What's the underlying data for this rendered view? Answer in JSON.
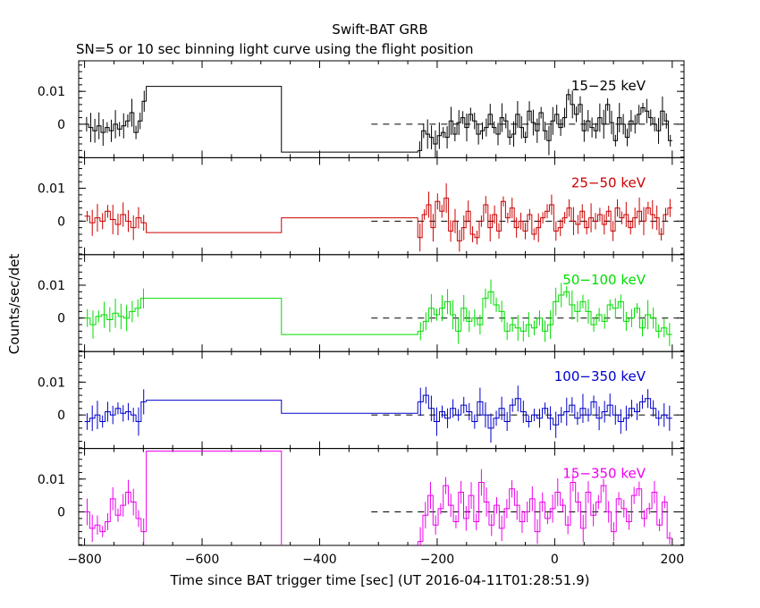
{
  "chart_data": {
    "type": "line",
    "title": "Swift-BAT GRB",
    "subtitle": "SN=5 or 10 sec binning light curve using the flight position",
    "xlabel": "Time since BAT trigger time [sec] (UT 2016-04-11T01:28:51.9)",
    "ylabel": "Counts/sec/det",
    "xlim": [
      -810,
      220
    ],
    "x_ticks": [
      -800,
      -600,
      -400,
      -200,
      0,
      200
    ],
    "y_ticks": [
      0,
      0.01
    ],
    "y_tick_labels": [
      "0",
      "0.01"
    ],
    "grid": false,
    "reference_line": 0,
    "panels": [
      {
        "name": "15−25 keV",
        "color": "#000000",
        "ylim": [
          -0.0102,
          0.0193
        ],
        "early": [
          0.0,
          -0.001,
          -0.002,
          -0.0005,
          -0.0025,
          -0.001,
          -0.002,
          0.0,
          -0.0015,
          -0.0005,
          0.001,
          0.0035,
          -0.0025,
          0.001,
          0.007
        ],
        "wide": [
          0.0115,
          -0.0085
        ],
        "late": [
          -0.008,
          -0.002,
          -0.003,
          -0.004,
          -0.006,
          -0.0035,
          -0.0025,
          -0.004,
          0.001,
          -0.003,
          0.0005,
          0.002,
          -0.001,
          0.003,
          0.001,
          -0.003,
          -0.002,
          -0.001,
          0.003,
          -0.001,
          -0.003,
          0.002,
          0.001,
          -0.004,
          -0.003,
          0.003,
          -0.001,
          -0.004,
          0.004,
          0.0005,
          -0.002,
          0.0035,
          -0.002,
          -0.005,
          0.001,
          0.003,
          -0.001,
          0.002,
          0.009,
          0.006,
          0.003,
          0.006,
          -0.002,
          0.001,
          -0.001,
          -0.002,
          0.002,
          0.0,
          0.006,
          0.0005,
          -0.005,
          0.002,
          0.0,
          -0.004,
          0.001,
          0.0,
          0.003,
          0.005,
          0.004,
          0.002,
          0.0,
          -0.002,
          0.004,
          0.001,
          -0.005
        ]
      },
      {
        "name": "25−50 keV",
        "color": "#cc0000",
        "ylim": [
          -0.0102,
          0.0193
        ],
        "early": [
          0.0015,
          -0.0005,
          0.001,
          0.0,
          0.003,
          0.0005,
          -0.001,
          0.002,
          0.0,
          -0.002,
          0.001,
          -0.0005
        ],
        "wide": [
          -0.0035,
          0.001
        ],
        "late": [
          -0.005,
          0.002,
          0.005,
          -0.002,
          0.006,
          0.003,
          0.007,
          -0.003,
          0.0,
          -0.006,
          -0.002,
          0.003,
          -0.004,
          -0.005,
          0.0,
          0.005,
          -0.002,
          0.002,
          -0.003,
          0.006,
          0.001,
          0.004,
          -0.002,
          0.0,
          -0.003,
          0.002,
          -0.004,
          -0.002,
          0.001,
          0.003,
          0.005,
          -0.003,
          -0.002,
          0.001,
          0.004,
          0.0,
          -0.001,
          0.003,
          -0.002,
          0.001,
          0.0,
          0.002,
          -0.001,
          0.003,
          -0.003,
          0.004,
          0.001,
          0.002,
          -0.002,
          0.001,
          0.003,
          0.0,
          0.004,
          0.002,
          0.001,
          -0.004,
          0.002,
          0.004
        ]
      },
      {
        "name": "50−100 keV",
        "color": "#00dd00",
        "ylim": [
          -0.0102,
          0.0193
        ],
        "early": [
          0.0,
          -0.002,
          0.0005,
          0.001,
          -0.0005,
          0.0015,
          0.0005,
          0.0,
          0.002,
          0.003,
          0.006
        ],
        "wide": [
          0.006,
          -0.005
        ],
        "late": [
          -0.004,
          -0.001,
          0.003,
          0.001,
          0.003,
          0.005,
          0.001,
          -0.004,
          0.003,
          -0.001,
          0.0,
          -0.002,
          0.006,
          0.008,
          0.004,
          0.002,
          -0.004,
          -0.002,
          -0.003,
          -0.004,
          -0.002,
          -0.003,
          0.0,
          -0.004,
          -0.002,
          0.005,
          0.007,
          0.008,
          0.004,
          0.002,
          0.005,
          0.002,
          -0.002,
          0.001,
          -0.001,
          0.004,
          0.003,
          0.005,
          -0.001,
          0.0,
          0.003,
          -0.003,
          0.001,
          0.0,
          -0.004,
          -0.003,
          -0.005
        ]
      },
      {
        "name": "100−350 keV",
        "color": "#0000cc",
        "ylim": [
          -0.0102,
          0.0193
        ],
        "early": [
          -0.002,
          -0.001,
          0.0,
          -0.002,
          0.001,
          0.0,
          0.002,
          0.0005,
          0.001,
          0.0,
          -0.002,
          0.004
        ],
        "wide": [
          0.0045,
          0.0005
        ],
        "late": [
          0.004,
          0.006,
          0.002,
          -0.002,
          0.001,
          -0.001,
          0.002,
          0.0,
          0.003,
          0.001,
          -0.002,
          0.004,
          0.0,
          -0.004,
          -0.001,
          0.002,
          -0.002,
          0.003,
          0.005,
          0.001,
          -0.002,
          0.0,
          -0.001,
          0.002,
          -0.001,
          -0.003,
          0.0,
          0.001,
          0.003,
          -0.001,
          0.002,
          0.0,
          0.004,
          -0.001,
          0.001,
          0.003,
          0.0,
          -0.002,
          -0.001,
          0.002,
          0.001,
          0.004,
          0.005,
          0.002,
          -0.001,
          0.0,
          -0.001
        ]
      },
      {
        "name": "15−350 keV",
        "color": "#ee00ee",
        "ylim": [
          -0.0102,
          0.0193
        ],
        "early": [
          0.0,
          -0.005,
          -0.004,
          -0.006,
          -0.003,
          0.004,
          -0.001,
          0.002,
          0.006,
          0.003,
          -0.002,
          -0.006
        ],
        "wide": [
          0.0185,
          -0.025
        ],
        "late": [
          -0.009,
          -0.001,
          0.005,
          -0.004,
          0.001,
          0.008,
          0.002,
          -0.003,
          0.006,
          -0.002,
          0.005,
          -0.003,
          0.009,
          0.003,
          -0.004,
          0.002,
          -0.005,
          0.001,
          0.007,
          0.002,
          -0.003,
          0.0,
          0.004,
          -0.006,
          0.003,
          -0.002,
          0.001,
          0.006,
          0.002,
          -0.004,
          0.009,
          0.003,
          -0.005,
          0.006,
          -0.001,
          0.003,
          0.008,
          0.0,
          -0.006,
          0.004,
          0.001,
          -0.003,
          0.005,
          0.007,
          -0.002,
          0.001,
          0.006,
          -0.004,
          0.003,
          -0.008
        ]
      }
    ]
  }
}
